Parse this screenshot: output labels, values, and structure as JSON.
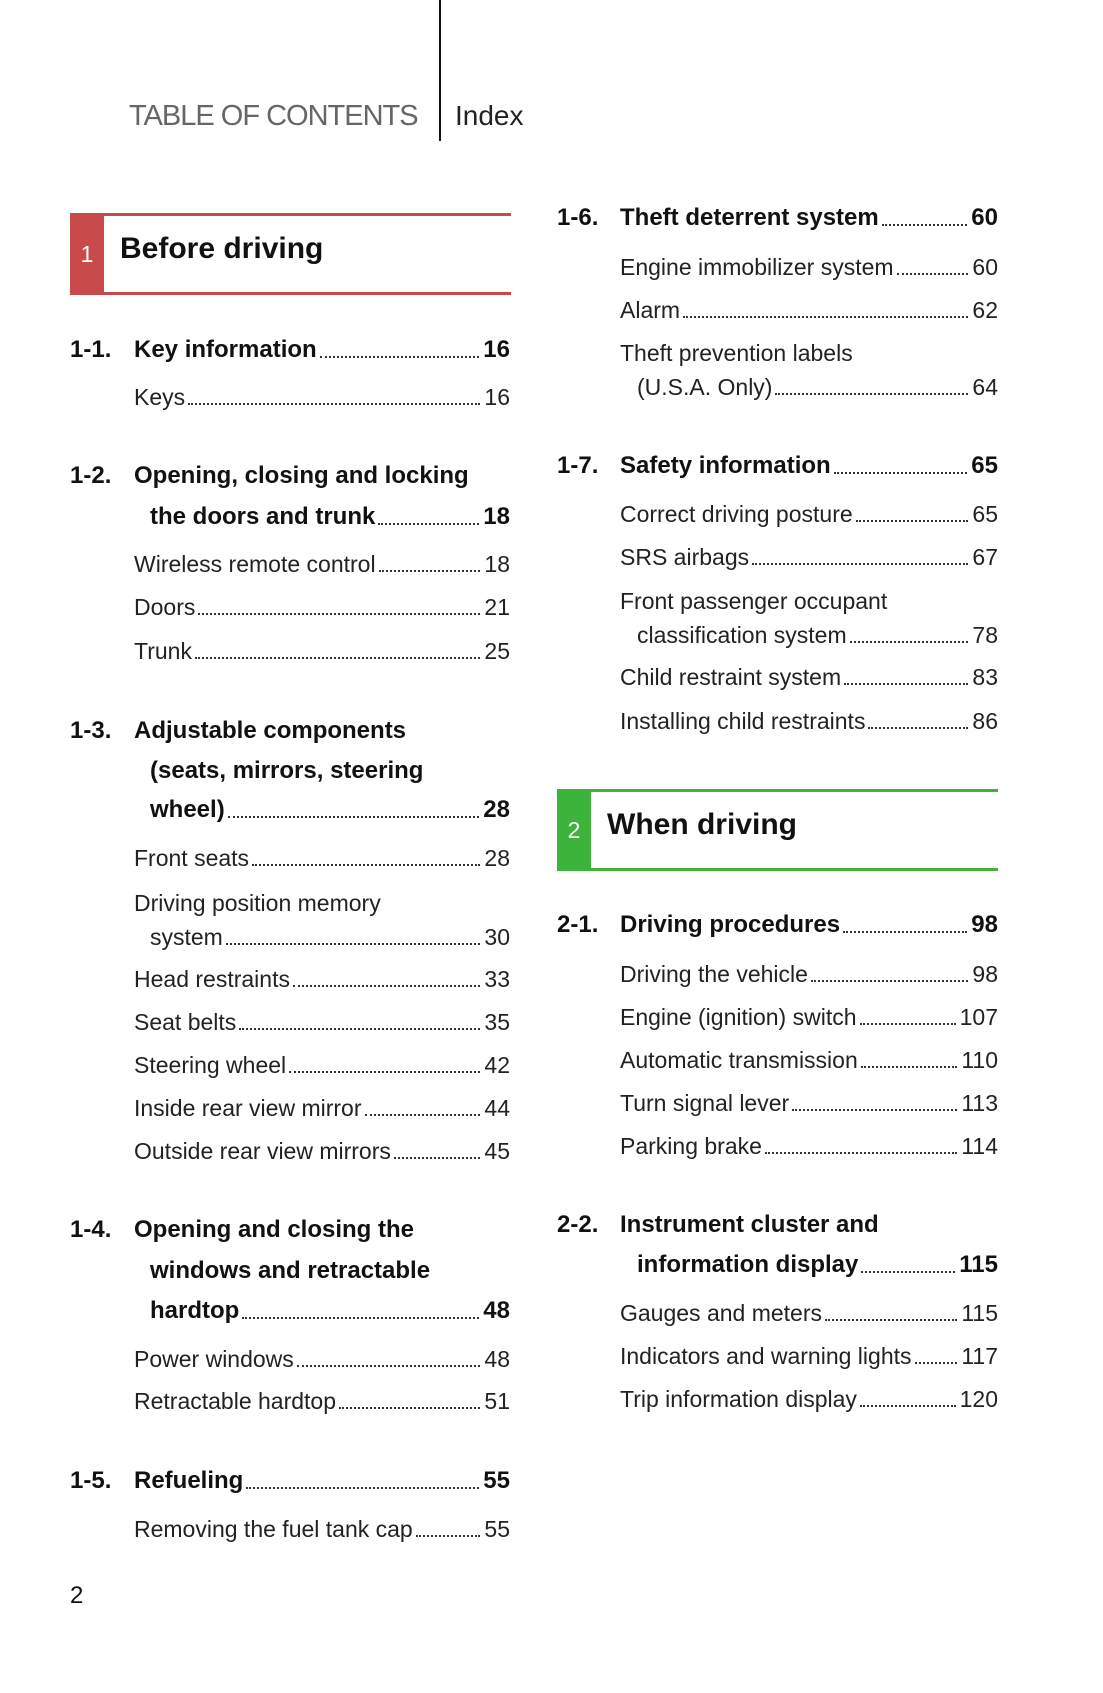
{
  "header": {
    "title": "TABLE OF CONTENTS",
    "index": "Index"
  },
  "sections": [
    {
      "number": "1",
      "title": "Before driving",
      "color": "#c94a4a"
    },
    {
      "number": "2",
      "title": "When driving",
      "color": "#3cb43c"
    }
  ],
  "columns": [
    {
      "entries": [
        {
          "num": "1-1.",
          "lines": [
            "Key information"
          ],
          "page": "16",
          "subs": [
            {
              "lines": [
                "Keys"
              ],
              "page": "16"
            }
          ]
        },
        {
          "num": "1-2.",
          "lines": [
            "Opening, closing and locking",
            "the doors and trunk"
          ],
          "page": "18",
          "subs": [
            {
              "lines": [
                "Wireless remote control"
              ],
              "page": "18"
            },
            {
              "lines": [
                "Doors"
              ],
              "page": "21"
            },
            {
              "lines": [
                "Trunk"
              ],
              "page": "25"
            }
          ]
        },
        {
          "num": "1-3.",
          "lines": [
            "Adjustable components",
            "(seats, mirrors, steering",
            "wheel)"
          ],
          "page": "28",
          "subs": [
            {
              "lines": [
                "Front seats"
              ],
              "page": "28"
            },
            {
              "lines": [
                "Driving position memory",
                "system"
              ],
              "page": "30"
            },
            {
              "lines": [
                "Head restraints"
              ],
              "page": "33"
            },
            {
              "lines": [
                "Seat belts"
              ],
              "page": "35"
            },
            {
              "lines": [
                "Steering wheel"
              ],
              "page": "42"
            },
            {
              "lines": [
                "Inside rear view mirror"
              ],
              "page": "44"
            },
            {
              "lines": [
                "Outside rear view mirrors"
              ],
              "page": "45"
            }
          ]
        },
        {
          "num": "1-4.",
          "lines": [
            "Opening and closing the",
            "windows and retractable",
            "hardtop"
          ],
          "page": "48",
          "subs": [
            {
              "lines": [
                "Power windows"
              ],
              "page": "48"
            },
            {
              "lines": [
                "Retractable hardtop"
              ],
              "page": "51"
            }
          ]
        },
        {
          "num": "1-5.",
          "lines": [
            "Refueling"
          ],
          "page": "55",
          "subs": [
            {
              "lines": [
                "Removing the fuel tank cap"
              ],
              "page": "55"
            }
          ]
        }
      ]
    },
    {
      "entries": [
        {
          "num": "1-6.",
          "lines": [
            "Theft deterrent system"
          ],
          "page": "60",
          "subs": [
            {
              "lines": [
                "Engine immobilizer system"
              ],
              "page": "60"
            },
            {
              "lines": [
                "Alarm"
              ],
              "page": "62"
            },
            {
              "lines": [
                "Theft prevention labels",
                "(U.S.A. Only)"
              ],
              "page": "64"
            }
          ]
        },
        {
          "num": "1-7.",
          "lines": [
            "Safety information"
          ],
          "page": "65",
          "subs": [
            {
              "lines": [
                "Correct driving posture"
              ],
              "page": "65"
            },
            {
              "lines": [
                "SRS airbags"
              ],
              "page": "67"
            },
            {
              "lines": [
                "Front passenger occupant",
                "classification system"
              ],
              "page": "78"
            },
            {
              "lines": [
                "Child restraint system"
              ],
              "page": "83"
            },
            {
              "lines": [
                "Installing child restraints"
              ],
              "page": "86"
            }
          ]
        },
        {
          "num": "2-1.",
          "lines": [
            "Driving procedures"
          ],
          "page": "98",
          "subs": [
            {
              "lines": [
                "Driving the vehicle"
              ],
              "page": "98"
            },
            {
              "lines": [
                "Engine (ignition) switch"
              ],
              "page": "107"
            },
            {
              "lines": [
                "Automatic transmission"
              ],
              "page": "110"
            },
            {
              "lines": [
                "Turn signal lever"
              ],
              "page": "113"
            },
            {
              "lines": [
                "Parking brake"
              ],
              "page": "114"
            }
          ]
        },
        {
          "num": "2-2.",
          "lines": [
            "Instrument cluster and",
            "information display"
          ],
          "page": "115",
          "subs": [
            {
              "lines": [
                "Gauges and meters"
              ],
              "page": "115"
            },
            {
              "lines": [
                "Indicators and warning lights"
              ],
              "page": "117"
            },
            {
              "lines": [
                "Trip information display"
              ],
              "page": "120"
            }
          ]
        }
      ]
    }
  ],
  "page_number": "2"
}
